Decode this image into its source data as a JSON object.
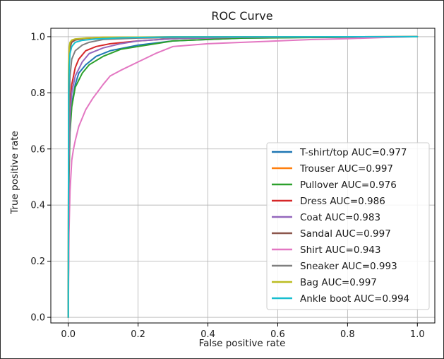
{
  "chart_data": {
    "type": "line",
    "title": "ROC Curve",
    "xlabel": "False positive rate",
    "ylabel": "True positive rate",
    "xlim": [
      -0.05,
      1.05
    ],
    "ylim": [
      -0.02,
      1.03
    ],
    "xticks": [
      0.0,
      0.2,
      0.4,
      0.6,
      0.8,
      1.0
    ],
    "xtick_labels": [
      "0.0",
      "0.2",
      "0.4",
      "0.6",
      "0.8",
      "1.0"
    ],
    "yticks": [
      0.0,
      0.2,
      0.4,
      0.6,
      0.8,
      1.0
    ],
    "ytick_labels": [
      "0.0",
      "0.2",
      "0.4",
      "0.6",
      "0.8",
      "1.0"
    ],
    "grid": true,
    "legend_position": "lower-right",
    "series": [
      {
        "name": "T-shirt/top AUC=0.977",
        "color": "#1f77b4",
        "x": [
          0,
          0.002,
          0.005,
          0.01,
          0.02,
          0.03,
          0.05,
          0.08,
          0.12,
          0.2,
          0.3,
          0.5,
          0.7,
          1.0
        ],
        "y": [
          0,
          0.52,
          0.68,
          0.76,
          0.83,
          0.87,
          0.9,
          0.93,
          0.95,
          0.97,
          0.985,
          0.995,
          0.998,
          1.0
        ]
      },
      {
        "name": "Trouser AUC=0.997",
        "color": "#ff7f0e",
        "x": [
          0,
          0.001,
          0.003,
          0.005,
          0.01,
          0.02,
          0.05,
          0.1,
          0.3,
          1.0
        ],
        "y": [
          0,
          0.88,
          0.96,
          0.975,
          0.985,
          0.99,
          0.995,
          0.998,
          0.999,
          1.0
        ]
      },
      {
        "name": "Pullover AUC=0.976",
        "color": "#2ca02c",
        "x": [
          0,
          0.002,
          0.005,
          0.01,
          0.02,
          0.04,
          0.06,
          0.1,
          0.15,
          0.2,
          0.25,
          0.3,
          0.5,
          1.0
        ],
        "y": [
          0,
          0.5,
          0.66,
          0.75,
          0.82,
          0.87,
          0.9,
          0.93,
          0.955,
          0.965,
          0.975,
          0.985,
          0.995,
          1.0
        ]
      },
      {
        "name": "Dress AUC=0.986",
        "color": "#d62728",
        "x": [
          0,
          0.002,
          0.005,
          0.01,
          0.02,
          0.03,
          0.05,
          0.08,
          0.12,
          0.2,
          0.3,
          0.5,
          1.0
        ],
        "y": [
          0,
          0.6,
          0.76,
          0.83,
          0.89,
          0.92,
          0.95,
          0.965,
          0.975,
          0.985,
          0.993,
          0.998,
          1.0
        ]
      },
      {
        "name": "Coat AUC=0.983",
        "color": "#9467bd",
        "x": [
          0,
          0.002,
          0.005,
          0.01,
          0.02,
          0.04,
          0.06,
          0.1,
          0.15,
          0.2,
          0.3,
          0.5,
          1.0
        ],
        "y": [
          0,
          0.55,
          0.72,
          0.8,
          0.86,
          0.91,
          0.94,
          0.96,
          0.975,
          0.985,
          0.993,
          0.998,
          1.0
        ]
      },
      {
        "name": "Sandal AUC=0.997",
        "color": "#8c564b",
        "x": [
          0,
          0.001,
          0.003,
          0.006,
          0.01,
          0.02,
          0.05,
          0.1,
          0.3,
          1.0
        ],
        "y": [
          0,
          0.86,
          0.94,
          0.965,
          0.98,
          0.988,
          0.994,
          0.997,
          0.999,
          1.0
        ]
      },
      {
        "name": "Shirt AUC=0.943",
        "color": "#e377c2",
        "x": [
          0,
          0.002,
          0.005,
          0.01,
          0.015,
          0.02,
          0.03,
          0.04,
          0.05,
          0.07,
          0.1,
          0.12,
          0.15,
          0.2,
          0.25,
          0.3,
          0.4,
          0.5,
          0.6,
          0.7,
          0.8,
          0.9,
          1.0
        ],
        "y": [
          0,
          0.3,
          0.45,
          0.56,
          0.6,
          0.63,
          0.68,
          0.71,
          0.74,
          0.78,
          0.83,
          0.86,
          0.88,
          0.91,
          0.94,
          0.965,
          0.975,
          0.98,
          0.985,
          0.99,
          0.993,
          0.997,
          1.0
        ]
      },
      {
        "name": "Sneaker AUC=0.993",
        "color": "#7f7f7f",
        "x": [
          0,
          0.002,
          0.005,
          0.01,
          0.02,
          0.04,
          0.06,
          0.1,
          0.2,
          0.5,
          1.0
        ],
        "y": [
          0,
          0.72,
          0.86,
          0.92,
          0.95,
          0.97,
          0.98,
          0.99,
          0.995,
          0.999,
          1.0
        ]
      },
      {
        "name": "Bag AUC=0.997",
        "color": "#bcbd22",
        "x": [
          0,
          0.001,
          0.003,
          0.005,
          0.01,
          0.02,
          0.05,
          0.1,
          0.3,
          1.0
        ],
        "y": [
          0,
          0.9,
          0.965,
          0.98,
          0.988,
          0.992,
          0.995,
          0.998,
          0.999,
          1.0
        ]
      },
      {
        "name": "Ankle boot AUC=0.994",
        "color": "#17becf",
        "x": [
          0,
          0.001,
          0.003,
          0.005,
          0.01,
          0.02,
          0.04,
          0.08,
          0.15,
          0.3,
          1.0
        ],
        "y": [
          0,
          0.8,
          0.9,
          0.94,
          0.965,
          0.98,
          0.987,
          0.992,
          0.996,
          0.999,
          1.0
        ]
      }
    ]
  }
}
